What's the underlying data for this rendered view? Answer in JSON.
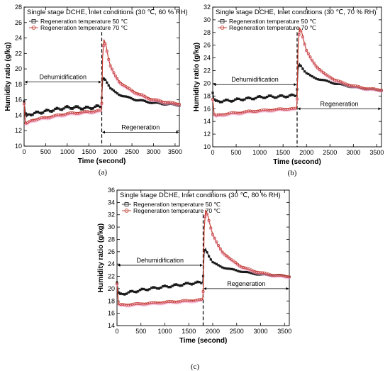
{
  "chart_data": [
    {
      "panel_label": "(a)",
      "type": "line",
      "title": "Single stage DCHE, Inlet conditions (30 ℃, 60 % RH)",
      "xlabel": "Time (second)",
      "ylabel": "Humidity ratio (g/kg)",
      "xlim": [
        0,
        3600
      ],
      "ylim": [
        10,
        28
      ],
      "xticks": [
        0,
        500,
        1000,
        1500,
        2000,
        2500,
        3000,
        3500
      ],
      "yticks": [
        10,
        12,
        14,
        16,
        18,
        20,
        22,
        24,
        26,
        28
      ],
      "annotations": {
        "left": "Dehumidification",
        "right": "Regeneration",
        "left_arrow_y": 18.3,
        "right_arrow_y": 11.8
      },
      "switch_time": 1800,
      "series": [
        {
          "name": "Regeneration temperature 50 ℃",
          "color": "#1a1a1a",
          "x": [
            0,
            30,
            60,
            100,
            200,
            400,
            600,
            800,
            1000,
            1200,
            1400,
            1600,
            1790,
            1800,
            1820,
            1850,
            1900,
            1950,
            2000,
            2100,
            2200,
            2400,
            2600,
            2800,
            3000,
            3200,
            3400,
            3600
          ],
          "y": [
            15.8,
            14.2,
            13.8,
            14.1,
            14.2,
            14.4,
            14.6,
            14.8,
            15.0,
            15.0,
            14.9,
            15.0,
            15.2,
            16.2,
            18.4,
            18.9,
            18.5,
            18.0,
            17.5,
            17.0,
            16.7,
            16.3,
            16.0,
            15.8,
            15.6,
            15.5,
            15.4,
            15.3
          ]
        },
        {
          "name": "Regeneration temperature 70 ℃",
          "color": "#c0392b",
          "x": [
            0,
            30,
            60,
            100,
            200,
            400,
            600,
            800,
            1000,
            1200,
            1400,
            1600,
            1790,
            1800,
            1820,
            1850,
            1900,
            1950,
            2000,
            2100,
            2200,
            2400,
            2600,
            2800,
            3000,
            3200,
            3400,
            3600
          ],
          "y": [
            15.5,
            13.0,
            12.8,
            13.1,
            13.4,
            13.6,
            13.8,
            14.0,
            14.2,
            14.3,
            14.4,
            14.5,
            14.6,
            15.5,
            21.5,
            23.8,
            23.0,
            21.5,
            20.4,
            19.2,
            18.4,
            17.5,
            16.9,
            16.4,
            16.0,
            15.8,
            15.6,
            15.5
          ]
        }
      ]
    },
    {
      "panel_label": "(b)",
      "type": "line",
      "title": "Single stage DCHE, Inlet conditions (30 ℃, 70 % RH)",
      "xlabel": "Time (second)",
      "ylabel": "Humidity ratio (g/kg)",
      "xlim": [
        0,
        3600
      ],
      "ylim": [
        10,
        32
      ],
      "xticks": [
        0,
        500,
        1000,
        1500,
        2000,
        2500,
        3000,
        3500
      ],
      "yticks": [
        10,
        12,
        14,
        16,
        18,
        20,
        22,
        24,
        26,
        28,
        30,
        32
      ],
      "annotations": {
        "left": "Dehumidification",
        "right": "Regeneration",
        "left_arrow_y": 19.8,
        "right_arrow_y": 16.0
      },
      "switch_time": 1800,
      "series": [
        {
          "name": "Regeneration temperature 50 ℃",
          "color": "#1a1a1a",
          "x": [
            0,
            30,
            60,
            100,
            200,
            400,
            600,
            800,
            1000,
            1200,
            1400,
            1600,
            1790,
            1800,
            1820,
            1850,
            1900,
            1950,
            2000,
            2100,
            2200,
            2400,
            2600,
            2800,
            3000,
            3200,
            3400,
            3600
          ],
          "y": [
            18.5,
            17.4,
            17.1,
            17.2,
            17.2,
            17.3,
            17.5,
            17.6,
            17.8,
            17.9,
            17.9,
            18.0,
            18.1,
            19.0,
            22.2,
            23.1,
            22.6,
            22.0,
            21.6,
            21.1,
            20.8,
            20.4,
            20.0,
            19.7,
            19.4,
            19.2,
            19.0,
            18.9
          ]
        },
        {
          "name": "Regeneration temperature 70 ℃",
          "color": "#c0392b",
          "x": [
            0,
            30,
            60,
            100,
            200,
            400,
            600,
            800,
            1000,
            1200,
            1400,
            1600,
            1790,
            1800,
            1820,
            1850,
            1900,
            1950,
            2000,
            2100,
            2200,
            2400,
            2600,
            2800,
            3000,
            3200,
            3400,
            3600
          ],
          "y": [
            17.5,
            15.2,
            14.8,
            15.0,
            15.1,
            15.3,
            15.4,
            15.6,
            15.7,
            15.8,
            15.9,
            16.0,
            16.0,
            17.5,
            25.5,
            28.8,
            28.0,
            26.5,
            25.2,
            23.8,
            22.8,
            21.4,
            20.6,
            20.0,
            19.6,
            19.3,
            19.1,
            19.0
          ]
        }
      ]
    },
    {
      "panel_label": "(c)",
      "type": "line",
      "title": "Single stage DCHE, Inlet conditions (30 ℃, 80 % RH)",
      "xlabel": "Time (second)",
      "ylabel": "Humidity ratio (g/kg)",
      "xlim": [
        0,
        3600
      ],
      "ylim": [
        14,
        36
      ],
      "xticks": [
        0,
        500,
        1000,
        1500,
        2000,
        2500,
        3000,
        3500
      ],
      "yticks": [
        14,
        16,
        18,
        20,
        22,
        24,
        26,
        28,
        30,
        32,
        34,
        36
      ],
      "annotations": {
        "left": "Dehumidification",
        "right": "Regeneration",
        "left_arrow_y": 23.8,
        "right_arrow_y": 20.0
      },
      "switch_time": 1800,
      "series": [
        {
          "name": "Regeneration temperature 50 ℃",
          "color": "#1a1a1a",
          "x": [
            0,
            30,
            60,
            100,
            200,
            400,
            600,
            800,
            1000,
            1200,
            1400,
            1600,
            1790,
            1800,
            1820,
            1850,
            1900,
            1950,
            2000,
            2100,
            2200,
            2400,
            2600,
            2800,
            3000,
            3200,
            3400,
            3600
          ],
          "y": [
            21.0,
            19.3,
            19.0,
            19.1,
            19.3,
            19.6,
            19.9,
            20.1,
            20.3,
            20.5,
            20.7,
            20.9,
            21.0,
            22.0,
            25.8,
            26.5,
            25.6,
            24.9,
            24.3,
            23.8,
            23.5,
            23.1,
            22.8,
            22.5,
            22.3,
            22.2,
            22.1,
            22.0
          ]
        },
        {
          "name": "Regeneration temperature 70 ℃",
          "color": "#c0392b",
          "x": [
            0,
            30,
            60,
            100,
            200,
            400,
            600,
            800,
            1000,
            1200,
            1400,
            1600,
            1790,
            1800,
            1820,
            1850,
            1900,
            1950,
            2000,
            2100,
            2200,
            2400,
            2600,
            2800,
            3000,
            3200,
            3400,
            3600
          ],
          "y": [
            20.8,
            17.6,
            17.3,
            17.4,
            17.4,
            17.5,
            17.6,
            17.7,
            17.8,
            17.9,
            18.0,
            18.1,
            18.2,
            19.5,
            29.5,
            32.8,
            31.8,
            30.2,
            28.8,
            27.2,
            26.0,
            24.6,
            23.6,
            23.0,
            22.6,
            22.3,
            22.1,
            22.0
          ]
        }
      ]
    }
  ]
}
